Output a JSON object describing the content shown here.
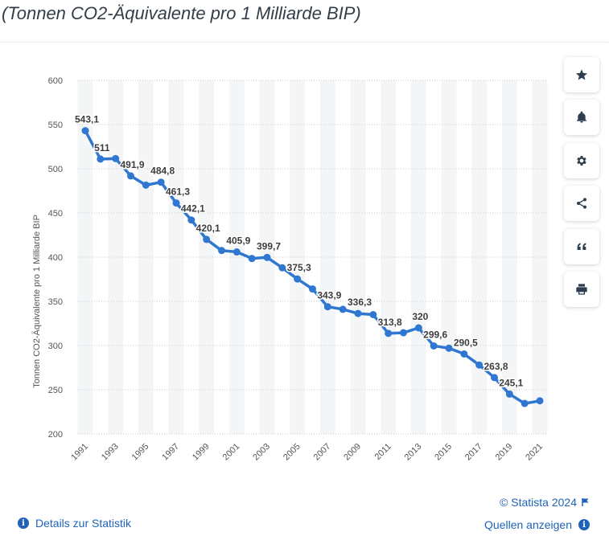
{
  "page_title": "(Tonnen CO2-Äquivalente pro 1 Milliarde BIP)",
  "toolbar": {
    "icons": [
      "star-icon",
      "bell-icon",
      "gear-icon",
      "share-icon",
      "quote-icon",
      "print-icon"
    ]
  },
  "footer": {
    "copyright": "© Statista 2024",
    "details_label": "Details zur Statistik",
    "sources_label": "Quellen anzeigen"
  },
  "colors": {
    "line": "#2f77d1",
    "stripe": "#f4f5f6",
    "grid": "#c9ced4",
    "link": "#1f63b8"
  },
  "chart_data": {
    "type": "line",
    "ylabel": "Tonnen CO2-Äquivalente pro 1 Milliarde BIP",
    "xlabel": "",
    "ylim": [
      200,
      600
    ],
    "yticks": [
      200,
      250,
      300,
      350,
      400,
      450,
      500,
      550,
      600
    ],
    "grid": true,
    "x_tick_labels": [
      "1991",
      "1993",
      "1995",
      "1997",
      "1999",
      "2001",
      "2003",
      "2005",
      "2007",
      "2009",
      "2011",
      "2013",
      "2015",
      "2017",
      "2019",
      "2021"
    ],
    "x": [
      1991,
      1992,
      1993,
      1994,
      1995,
      1996,
      1997,
      1998,
      1999,
      2000,
      2001,
      2002,
      2003,
      2004,
      2005,
      2006,
      2007,
      2008,
      2009,
      2010,
      2011,
      2012,
      2013,
      2014,
      2015,
      2016,
      2017,
      2018,
      2019,
      2020,
      2021
    ],
    "values": [
      543.1,
      511,
      511.5,
      491.9,
      481.5,
      484.8,
      461.3,
      442.1,
      420.1,
      407.5,
      405.9,
      398.5,
      399.7,
      388,
      375.3,
      364,
      343.9,
      341,
      336.3,
      335,
      313.8,
      314.5,
      320,
      299.6,
      297,
      290.5,
      278,
      263.8,
      245.1,
      234.5,
      237.5
    ],
    "data_labels": [
      {
        "year": 1991,
        "text": "543,1"
      },
      {
        "year": 1992,
        "text": "511"
      },
      {
        "year": 1994,
        "text": "491,9"
      },
      {
        "year": 1996,
        "text": "484,8"
      },
      {
        "year": 1997,
        "text": "461,3"
      },
      {
        "year": 1998,
        "text": "442,1"
      },
      {
        "year": 1999,
        "text": "420,1"
      },
      {
        "year": 2001,
        "text": "405,9"
      },
      {
        "year": 2003,
        "text": "399,7"
      },
      {
        "year": 2005,
        "text": "375,3"
      },
      {
        "year": 2007,
        "text": "343,9"
      },
      {
        "year": 2009,
        "text": "336,3"
      },
      {
        "year": 2011,
        "text": "313,8"
      },
      {
        "year": 2013,
        "text": "320"
      },
      {
        "year": 2014,
        "text": "299,6"
      },
      {
        "year": 2016,
        "text": "290,5"
      },
      {
        "year": 2018,
        "text": "263,8"
      },
      {
        "year": 2019,
        "text": "245,1"
      }
    ]
  }
}
